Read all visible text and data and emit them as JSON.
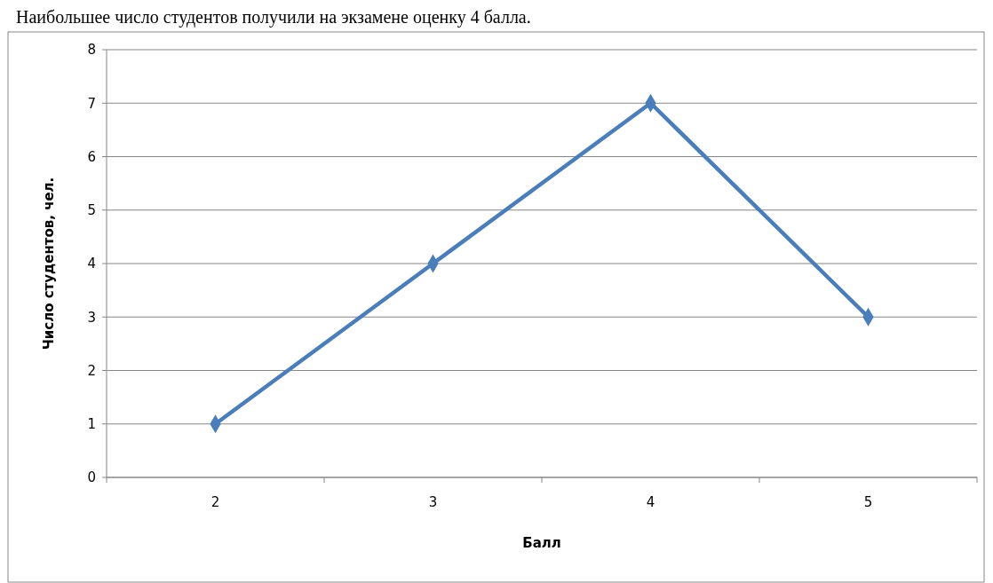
{
  "chart_data": {
    "type": "line",
    "xlabel": "Балл",
    "ylabel": "Число студентов, чел.",
    "categories": [
      "2",
      "3",
      "4",
      "5"
    ],
    "series": [
      {
        "color": "#4a7ebb",
        "values": [
          1,
          4,
          7,
          3
        ]
      }
    ],
    "ylim": [
      0,
      8
    ],
    "yticks": [
      0,
      1,
      2,
      3,
      4,
      5,
      6,
      7,
      8
    ],
    "grid": "y",
    "marker": "diamond",
    "line_style": "solid",
    "annotations": [
      "Наибольшее число студентов получили на экзамене оценку 4 балла."
    ]
  }
}
